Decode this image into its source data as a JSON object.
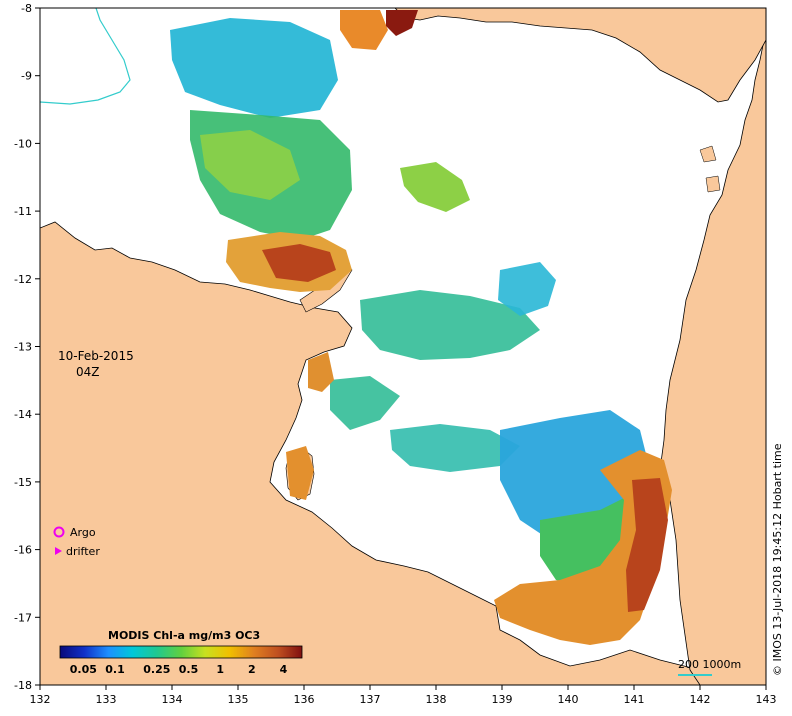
{
  "map": {
    "date": "10-Feb-2015",
    "time": "04Z",
    "credit": "© IMOS 13-Jul-2018 19:45:12 Hobart time",
    "lon_ticks": [
      "132",
      "133",
      "134",
      "135",
      "136",
      "137",
      "138",
      "139",
      "140",
      "141",
      "142",
      "143"
    ],
    "lat_ticks": [
      "-8",
      "-9",
      "-10",
      "-11",
      "-12",
      "-13",
      "-14",
      "-15",
      "-16",
      "-17",
      "-18"
    ],
    "lon_range": [
      132,
      143
    ],
    "lat_range": [
      -18,
      -8
    ],
    "colors": {
      "land": "#f9c89b",
      "ocean_nodata": "#ffffff",
      "coastline": "#000000",
      "bathymetry_contour": "#33cccc"
    }
  },
  "symbols": {
    "argo_label": "Argo",
    "argo_color": "#ee00ee",
    "drifter_label": "drifter",
    "drifter_color": "#ee00ee"
  },
  "legend": {
    "title": "MODIS Chl-a mg/m3 OC3",
    "ticks": [
      "0.05",
      "0.1",
      "0.25",
      "0.5",
      "1",
      "2",
      "4"
    ],
    "colormap": [
      "#0a0a7a",
      "#1030c8",
      "#1e90ff",
      "#00c8d8",
      "#20c890",
      "#60d040",
      "#c8e020",
      "#f0c000",
      "#e08020",
      "#c05020",
      "#801010"
    ]
  },
  "scale_bar": {
    "label": "200  1000m",
    "color": "#33cccc"
  }
}
